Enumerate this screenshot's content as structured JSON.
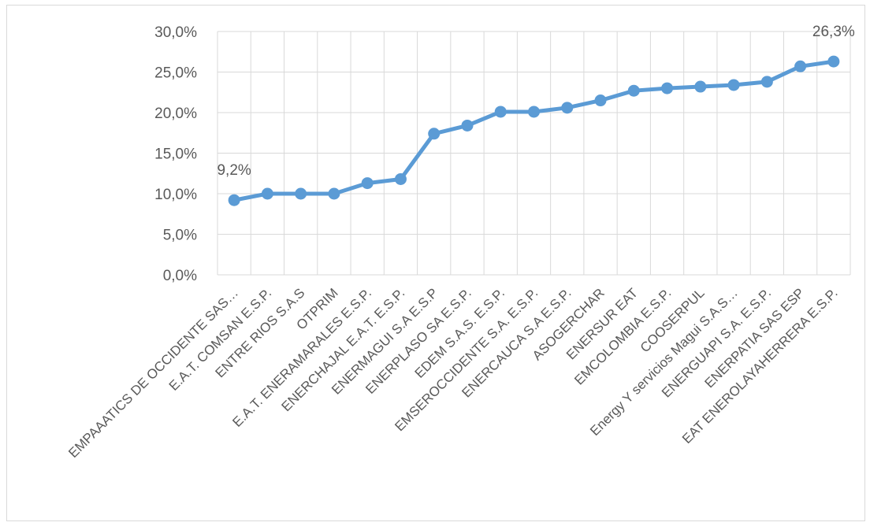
{
  "chart_data": {
    "type": "line",
    "categories": [
      "EMPAAATICS DE OCCIDENTE SAS…",
      "E.A.T. COMSAN E.S.P.",
      "ENTRE RIOS S.A.S",
      "OTPRIM",
      "E.A.T. ENERAMARALES E.S.P.",
      "ENERCHAJAL E.A.T. E.S.P.",
      "ENERMAGUI S.A E.S.P",
      "ENERPLASO SA E.S.P.",
      "EDEM S.A.S. E.S.P.",
      "EMSEROCCIDENTE S.A. E.S.P.",
      "ENERCAUCA S.A E.S.P.",
      "ASOGERCHAR",
      "ENERSUR EAT",
      "EMCOLOMBIA E.S.P.",
      "COOSERPUL",
      "Energy Y servicios Magui S.A.S…",
      "ENERGUAPI S.A. E.S.P.",
      "ENERPATIA SAS ESP",
      "EAT ENEROLAYAHERRERA E.S.P."
    ],
    "values": [
      9.2,
      10.0,
      10.0,
      10.0,
      11.3,
      11.8,
      17.4,
      18.4,
      20.1,
      20.1,
      20.6,
      21.5,
      22.7,
      23.0,
      23.2,
      23.4,
      23.8,
      25.7,
      26.3
    ],
    "ylim": [
      0,
      30
    ],
    "yticks": [
      "0,0%",
      "5,0%",
      "10,0%",
      "15,0%",
      "20,0%",
      "25,0%",
      "30,0%"
    ],
    "data_labels": [
      {
        "index": 0,
        "text": "9,2%"
      },
      {
        "index": 18,
        "text": "26,3%"
      }
    ],
    "line_color": "#5b9bd5",
    "grid": true,
    "legend": "none"
  }
}
